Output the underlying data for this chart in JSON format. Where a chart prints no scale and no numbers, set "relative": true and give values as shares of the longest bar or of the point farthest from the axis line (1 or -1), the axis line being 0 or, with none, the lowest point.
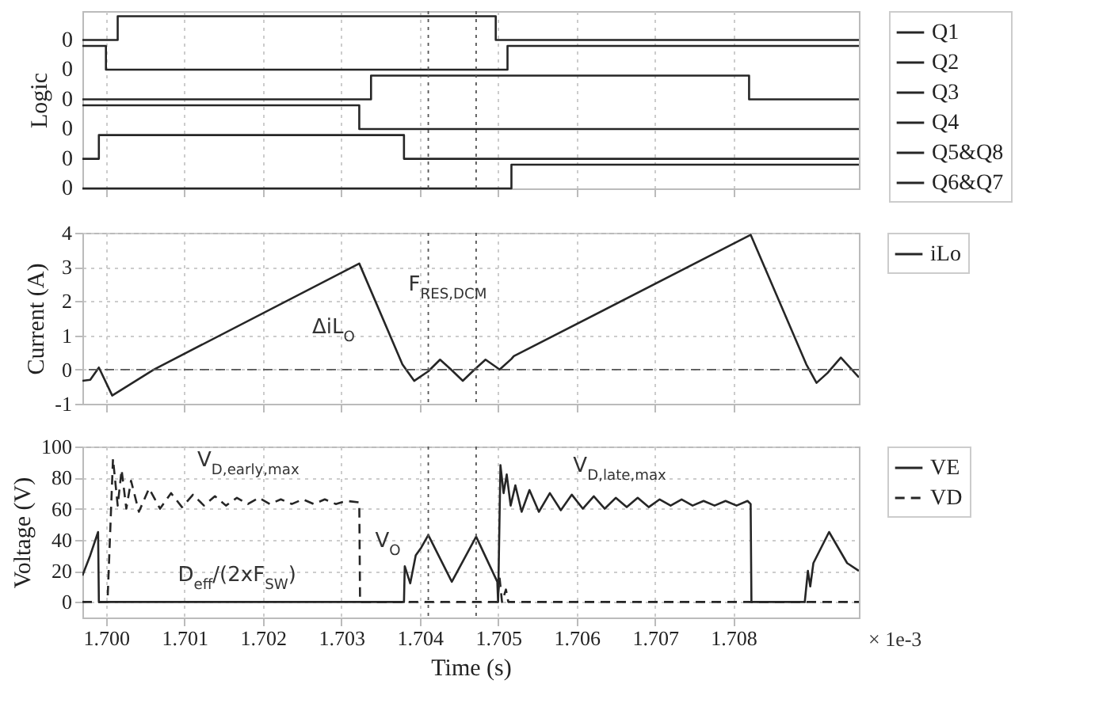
{
  "chart_data": [
    {
      "type": "step",
      "relative": true,
      "ylabel": "Logic",
      "xlim": [
        1.6997,
        1.7096
      ],
      "xticks": [
        1.7,
        1.701,
        1.702,
        1.703,
        1.704,
        1.705,
        1.706,
        1.707,
        1.708
      ],
      "grid": "x",
      "legend": "right",
      "tick_labels": "y",
      "ref_lines": [
        {
          "axis": "x",
          "value": 1.70411,
          "line_style": "dotted"
        },
        {
          "axis": "x",
          "value": 1.70472,
          "line_style": "dotted"
        }
      ],
      "annotations": [
        "0",
        "0",
        "0",
        "0",
        "0",
        "0"
      ],
      "series": [
        {
          "name": "Q1",
          "color": "#262626",
          "x": [
            1.6997,
            1.70015,
            1.70497,
            1.7096
          ],
          "values": [
            0.862,
            1,
            0.862,
            0.862
          ]
        },
        {
          "name": "Q2",
          "color": "#262626",
          "x": [
            1.6997,
            1.7,
            1.70512,
            1.7096
          ],
          "values": [
            0.828,
            0.69,
            0.828,
            0.828
          ]
        },
        {
          "name": "Q3",
          "color": "#262626",
          "x": [
            1.6997,
            1.70338,
            1.7082,
            1.7096
          ],
          "values": [
            0.517,
            0.655,
            0.517,
            0.517
          ]
        },
        {
          "name": "Q4",
          "color": "#262626",
          "x": [
            1.6997,
            1.70323,
            1.7096
          ],
          "values": [
            0.483,
            0.345,
            0.345
          ]
        },
        {
          "name": "Q5&Q8",
          "color": "#262626",
          "x": [
            1.6997,
            1.69991,
            1.7038,
            1.7096
          ],
          "values": [
            0.172,
            0.31,
            0.172,
            0.172
          ]
        },
        {
          "name": "Q6&Q7",
          "color": "#262626",
          "x": [
            1.6997,
            1.70517,
            1.70517,
            1.7096
          ],
          "values": [
            0,
            0,
            0.138,
            0.138
          ]
        }
      ]
    },
    {
      "type": "line",
      "ylabel": "Current (A)",
      "xlim": [
        1.6997,
        1.7096
      ],
      "xticks": [
        1.7,
        1.701,
        1.702,
        1.703,
        1.704,
        1.705,
        1.706,
        1.707,
        1.708
      ],
      "ylim": [
        -1,
        4
      ],
      "yticks": [
        -1,
        0,
        1,
        2,
        3,
        4
      ],
      "grid": true,
      "legend": "right",
      "tick_labels": "y",
      "ref_lines": [
        {
          "axis": "x",
          "value": 1.70411,
          "line_style": "dotted"
        },
        {
          "axis": "x",
          "value": 1.70472,
          "line_style": "dotted"
        },
        {
          "axis": "y",
          "value": 0,
          "line_style": "dashed"
        }
      ],
      "annotations": [
        "ΔiL$_{O}$",
        "F$_{RES,DCM}$"
      ],
      "series": [
        {
          "name": "iLo",
          "color": "#262626",
          "x": [
            1.6997,
            1.6998,
            1.69991,
            1.70008,
            1.70061,
            1.70323,
            1.70378,
            1.70393,
            1.70411,
            1.70426,
            1.7044,
            1.70455,
            1.7047,
            1.70484,
            1.70502,
            1.70517,
            1.7052,
            1.70822,
            1.70893,
            1.70906,
            1.7092,
            1.70937,
            1.7096
          ],
          "values": [
            -0.33,
            -0.3,
            0.06,
            -0.76,
            0,
            3.1,
            0.15,
            -0.33,
            -0.05,
            0.29,
            0,
            -0.33,
            0,
            0.29,
            0,
            0.31,
            0.39,
            3.94,
            0.15,
            -0.39,
            -0.1,
            0.35,
            -0.23
          ]
        }
      ]
    },
    {
      "type": "line",
      "xlabel": "Time (s)",
      "ylabel": "Voltage (V)",
      "xlim": [
        1.6997,
        1.7096
      ],
      "xticks": [
        {
          "value": 1.7,
          "label": "1.700"
        },
        {
          "value": 1.701,
          "label": "1.701"
        },
        {
          "value": 1.702,
          "label": "1.702"
        },
        {
          "value": 1.703,
          "label": "1.703"
        },
        {
          "value": 1.704,
          "label": "1.704"
        },
        {
          "value": 1.705,
          "label": "1.705"
        },
        {
          "value": 1.706,
          "label": "1.706"
        },
        {
          "value": 1.707,
          "label": "1.707"
        },
        {
          "value": 1.708,
          "label": "1.708"
        }
      ],
      "ylim": [
        -10,
        100
      ],
      "yticks": [
        0,
        20,
        40,
        60,
        80,
        100
      ],
      "grid": true,
      "legend": "right",
      "ref_lines": [
        {
          "axis": "x",
          "value": 1.70411,
          "line_style": "dotted"
        },
        {
          "axis": "x",
          "value": 1.70472,
          "line_style": "dotted"
        }
      ],
      "annotations": [
        "V$_{D,early,max}$",
        "V$_{D,late,max}$",
        "V$_{O}$",
        "D$_{eff}$/(2xF$_{SW}$)",
        "× 1e-3"
      ],
      "series": [
        {
          "name": "VE",
          "color": "#262626",
          "line_style": "solid",
          "x": [
            1.6997,
            1.6998,
            1.6999,
            1.69991,
            1.7038,
            1.70381,
            1.70388,
            1.70395,
            1.70402,
            1.70411,
            1.70441,
            1.70472,
            1.70499,
            1.705,
            1.70503,
            1.70507,
            1.70511,
            1.70516,
            1.70522,
            1.7053,
            1.7054,
            1.70552,
            1.70566,
            1.7058,
            1.70594,
            1.70608,
            1.70622,
            1.70636,
            1.7065,
            1.70664,
            1.70678,
            1.70692,
            1.70706,
            1.7072,
            1.70734,
            1.70748,
            1.70762,
            1.70776,
            1.7079,
            1.70804,
            1.70818,
            1.70822,
            1.70823,
            1.70891,
            1.70895,
            1.70898,
            1.70902,
            1.70922,
            1.70945,
            1.7096
          ],
          "values": [
            17,
            30,
            45,
            0,
            0,
            23,
            12,
            30,
            35,
            43,
            13,
            42,
            13,
            0,
            88,
            70,
            82,
            62,
            75,
            58,
            72,
            58,
            70,
            59,
            69,
            60,
            68,
            60,
            67,
            61,
            67,
            61,
            66,
            62,
            66,
            62,
            65,
            62,
            65,
            62,
            65,
            63,
            0,
            0,
            20,
            10,
            25,
            45,
            25,
            20
          ]
        },
        {
          "name": "VD",
          "color": "#262626",
          "line_style": "dashed",
          "x": [
            1.6997,
            1.70002,
            1.70009,
            1.70015,
            1.7002,
            1.70026,
            1.70032,
            1.70042,
            1.70055,
            1.70069,
            1.70083,
            1.70097,
            1.70111,
            1.70125,
            1.70139,
            1.70153,
            1.70167,
            1.70181,
            1.70195,
            1.70209,
            1.70223,
            1.70237,
            1.70251,
            1.70265,
            1.70279,
            1.70293,
            1.70307,
            1.70323,
            1.70324,
            1.70499,
            1.70502,
            1.70505,
            1.7051,
            1.70513,
            1.7096
          ],
          "values": [
            0,
            0,
            92,
            62,
            85,
            60,
            78,
            58,
            73,
            60,
            70,
            61,
            69,
            62,
            68,
            62,
            67,
            63,
            67,
            63,
            66,
            63,
            66,
            63,
            66,
            63,
            65,
            64,
            0,
            0,
            15,
            0,
            8,
            0,
            0
          ]
        }
      ]
    }
  ]
}
